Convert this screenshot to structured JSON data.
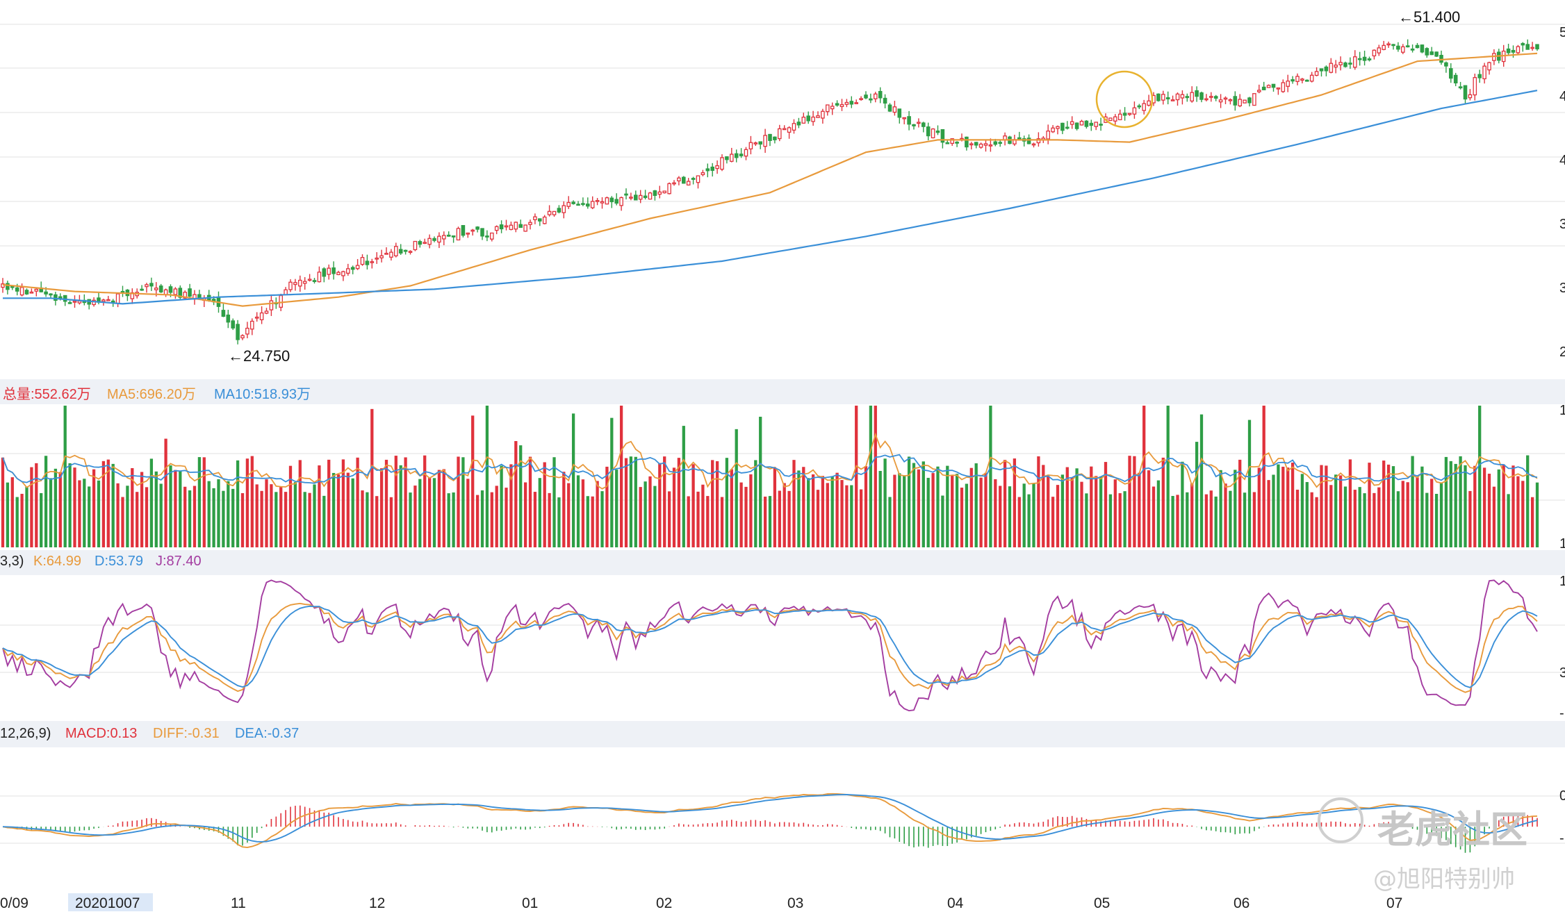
{
  "colors": {
    "up": "#e0323c",
    "down": "#2e9e46",
    "ma_orange": "#e89a3c",
    "ma_blue": "#3a8fd8",
    "k": "#e89a3c",
    "d": "#3a8fd8",
    "j": "#a33ca0",
    "grid": "#ececec",
    "circle": "#e8b22e"
  },
  "chart_data": [
    {
      "type": "candlestick",
      "panel": "price",
      "x_ticks": [
        "0/09",
        "20201007",
        "11",
        "12",
        "01",
        "02",
        "03",
        "04",
        "05",
        "06",
        "07"
      ],
      "y_tick_labels": [
        "5",
        "4",
        "4",
        "3",
        "3",
        "2"
      ],
      "ylim": [
        23,
        53
      ],
      "annotations": {
        "high": "←51.400",
        "low": "←24.750"
      },
      "anchors": [
        {
          "i": 0,
          "v": 29.2
        },
        {
          "i": 10,
          "v": 28.6
        },
        {
          "i": 20,
          "v": 27.7
        },
        {
          "i": 30,
          "v": 29.2
        },
        {
          "i": 44,
          "v": 28.0
        },
        {
          "i": 49,
          "v": 25.0
        },
        {
          "i": 55,
          "v": 27.3
        },
        {
          "i": 60,
          "v": 29.3
        },
        {
          "i": 75,
          "v": 31.6
        },
        {
          "i": 95,
          "v": 34.2
        },
        {
          "i": 105,
          "v": 34.3
        },
        {
          "i": 120,
          "v": 36.7
        },
        {
          "i": 135,
          "v": 37.4
        },
        {
          "i": 145,
          "v": 39.5
        },
        {
          "i": 160,
          "v": 42.6
        },
        {
          "i": 172,
          "v": 45.2
        },
        {
          "i": 182,
          "v": 46.5
        },
        {
          "i": 188,
          "v": 44.3
        },
        {
          "i": 198,
          "v": 42.1
        },
        {
          "i": 205,
          "v": 42.3
        },
        {
          "i": 215,
          "v": 42.4
        },
        {
          "i": 222,
          "v": 43.5
        },
        {
          "i": 230,
          "v": 44.2
        },
        {
          "i": 240,
          "v": 46.0
        },
        {
          "i": 250,
          "v": 46.3
        },
        {
          "i": 258,
          "v": 45.6
        },
        {
          "i": 265,
          "v": 47.2
        },
        {
          "i": 275,
          "v": 48.5
        },
        {
          "i": 285,
          "v": 50.0
        },
        {
          "i": 292,
          "v": 50.9
        },
        {
          "i": 297,
          "v": 50.2
        },
        {
          "i": 302,
          "v": 48.2
        },
        {
          "i": 305,
          "v": 46.2
        },
        {
          "i": 310,
          "v": 49.5
        },
        {
          "i": 318,
          "v": 50.9
        }
      ],
      "ma_slow_anchors": [
        {
          "i": 0,
          "v": 29.5
        },
        {
          "i": 15,
          "v": 28.9
        },
        {
          "i": 35,
          "v": 28.6
        },
        {
          "i": 50,
          "v": 27.6
        },
        {
          "i": 70,
          "v": 28.4
        },
        {
          "i": 85,
          "v": 29.4
        },
        {
          "i": 110,
          "v": 32.6
        },
        {
          "i": 135,
          "v": 35.4
        },
        {
          "i": 160,
          "v": 37.7
        },
        {
          "i": 180,
          "v": 41.3
        },
        {
          "i": 195,
          "v": 42.4
        },
        {
          "i": 220,
          "v": 42.4
        },
        {
          "i": 235,
          "v": 42.2
        },
        {
          "i": 255,
          "v": 44.2
        },
        {
          "i": 275,
          "v": 46.4
        },
        {
          "i": 295,
          "v": 49.4
        },
        {
          "i": 320,
          "v": 50.1
        }
      ],
      "ma_long_anchors": [
        {
          "i": 0,
          "v": 28.3
        },
        {
          "i": 10,
          "v": 28.3
        },
        {
          "i": 25,
          "v": 27.8
        },
        {
          "i": 45,
          "v": 28.4
        },
        {
          "i": 65,
          "v": 28.7
        },
        {
          "i": 90,
          "v": 29.1
        },
        {
          "i": 120,
          "v": 30.2
        },
        {
          "i": 150,
          "v": 31.6
        },
        {
          "i": 180,
          "v": 33.8
        },
        {
          "i": 210,
          "v": 36.3
        },
        {
          "i": 240,
          "v": 39.0
        },
        {
          "i": 270,
          "v": 42.0
        },
        {
          "i": 300,
          "v": 45.2
        },
        {
          "i": 320,
          "v": 46.8
        }
      ],
      "n_bars": 321
    },
    {
      "type": "bar",
      "panel": "volume",
      "legend": {
        "total": "总量:552.62万",
        "ma5": "MA5:696.20万",
        "ma10": "MA10:518.93万"
      },
      "values": {
        "total": 552.62,
        "ma5": 696.2,
        "ma10": 518.93,
        "unit": "万"
      },
      "y_tick_labels": [
        "1",
        "",
        "",
        "",
        "1"
      ]
    },
    {
      "type": "line",
      "panel": "kdj",
      "legend": {
        "params": "3,3)",
        "k": "K:64.99",
        "d": "D:53.79",
        "j": "J:87.40"
      },
      "values": {
        "K": 64.99,
        "D": 53.79,
        "J": 87.4
      },
      "y_tick_labels": [
        "1",
        "",
        "3",
        "-"
      ],
      "ylim": [
        -10,
        110
      ]
    },
    {
      "type": "line",
      "panel": "macd",
      "legend": {
        "params": "12,26,9)",
        "macd": "MACD:0.13",
        "diff": "DIFF:-0.31",
        "dea": "DEA:-0.37"
      },
      "values": {
        "MACD": 0.13,
        "DIFF": -0.31,
        "DEA": -0.37
      },
      "y_tick_labels": [
        "",
        "0",
        "-"
      ],
      "ylim": [
        -1.5,
        1.8
      ]
    }
  ],
  "watermark": {
    "brand": "老虎社区",
    "author": "@旭阳特别帅"
  }
}
